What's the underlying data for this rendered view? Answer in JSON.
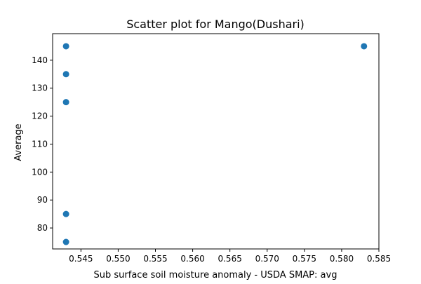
{
  "chart_data": {
    "type": "scatter",
    "title": "Scatter plot for Mango(Dushari)",
    "xlabel": "Sub surface soil moisture anomaly - USDA SMAP: avg",
    "ylabel": "Average",
    "xlim": [
      0.5412,
      0.585
    ],
    "ylim": [
      72.5,
      149.5
    ],
    "xticks": [
      0.545,
      0.55,
      0.555,
      0.56,
      0.565,
      0.57,
      0.575,
      0.58,
      0.585
    ],
    "xtick_labels": [
      "0.545",
      "0.550",
      "0.555",
      "0.560",
      "0.565",
      "0.570",
      "0.575",
      "0.580",
      "0.585"
    ],
    "yticks": [
      80,
      90,
      100,
      110,
      120,
      130,
      140
    ],
    "ytick_labels": [
      "80",
      "90",
      "100",
      "110",
      "120",
      "130",
      "140"
    ],
    "grid": false,
    "series": [
      {
        "color": "#1f77b4",
        "points": [
          {
            "x": 0.543,
            "y": 145
          },
          {
            "x": 0.543,
            "y": 135
          },
          {
            "x": 0.543,
            "y": 125
          },
          {
            "x": 0.543,
            "y": 85
          },
          {
            "x": 0.543,
            "y": 75
          },
          {
            "x": 0.583,
            "y": 145
          }
        ]
      }
    ]
  }
}
